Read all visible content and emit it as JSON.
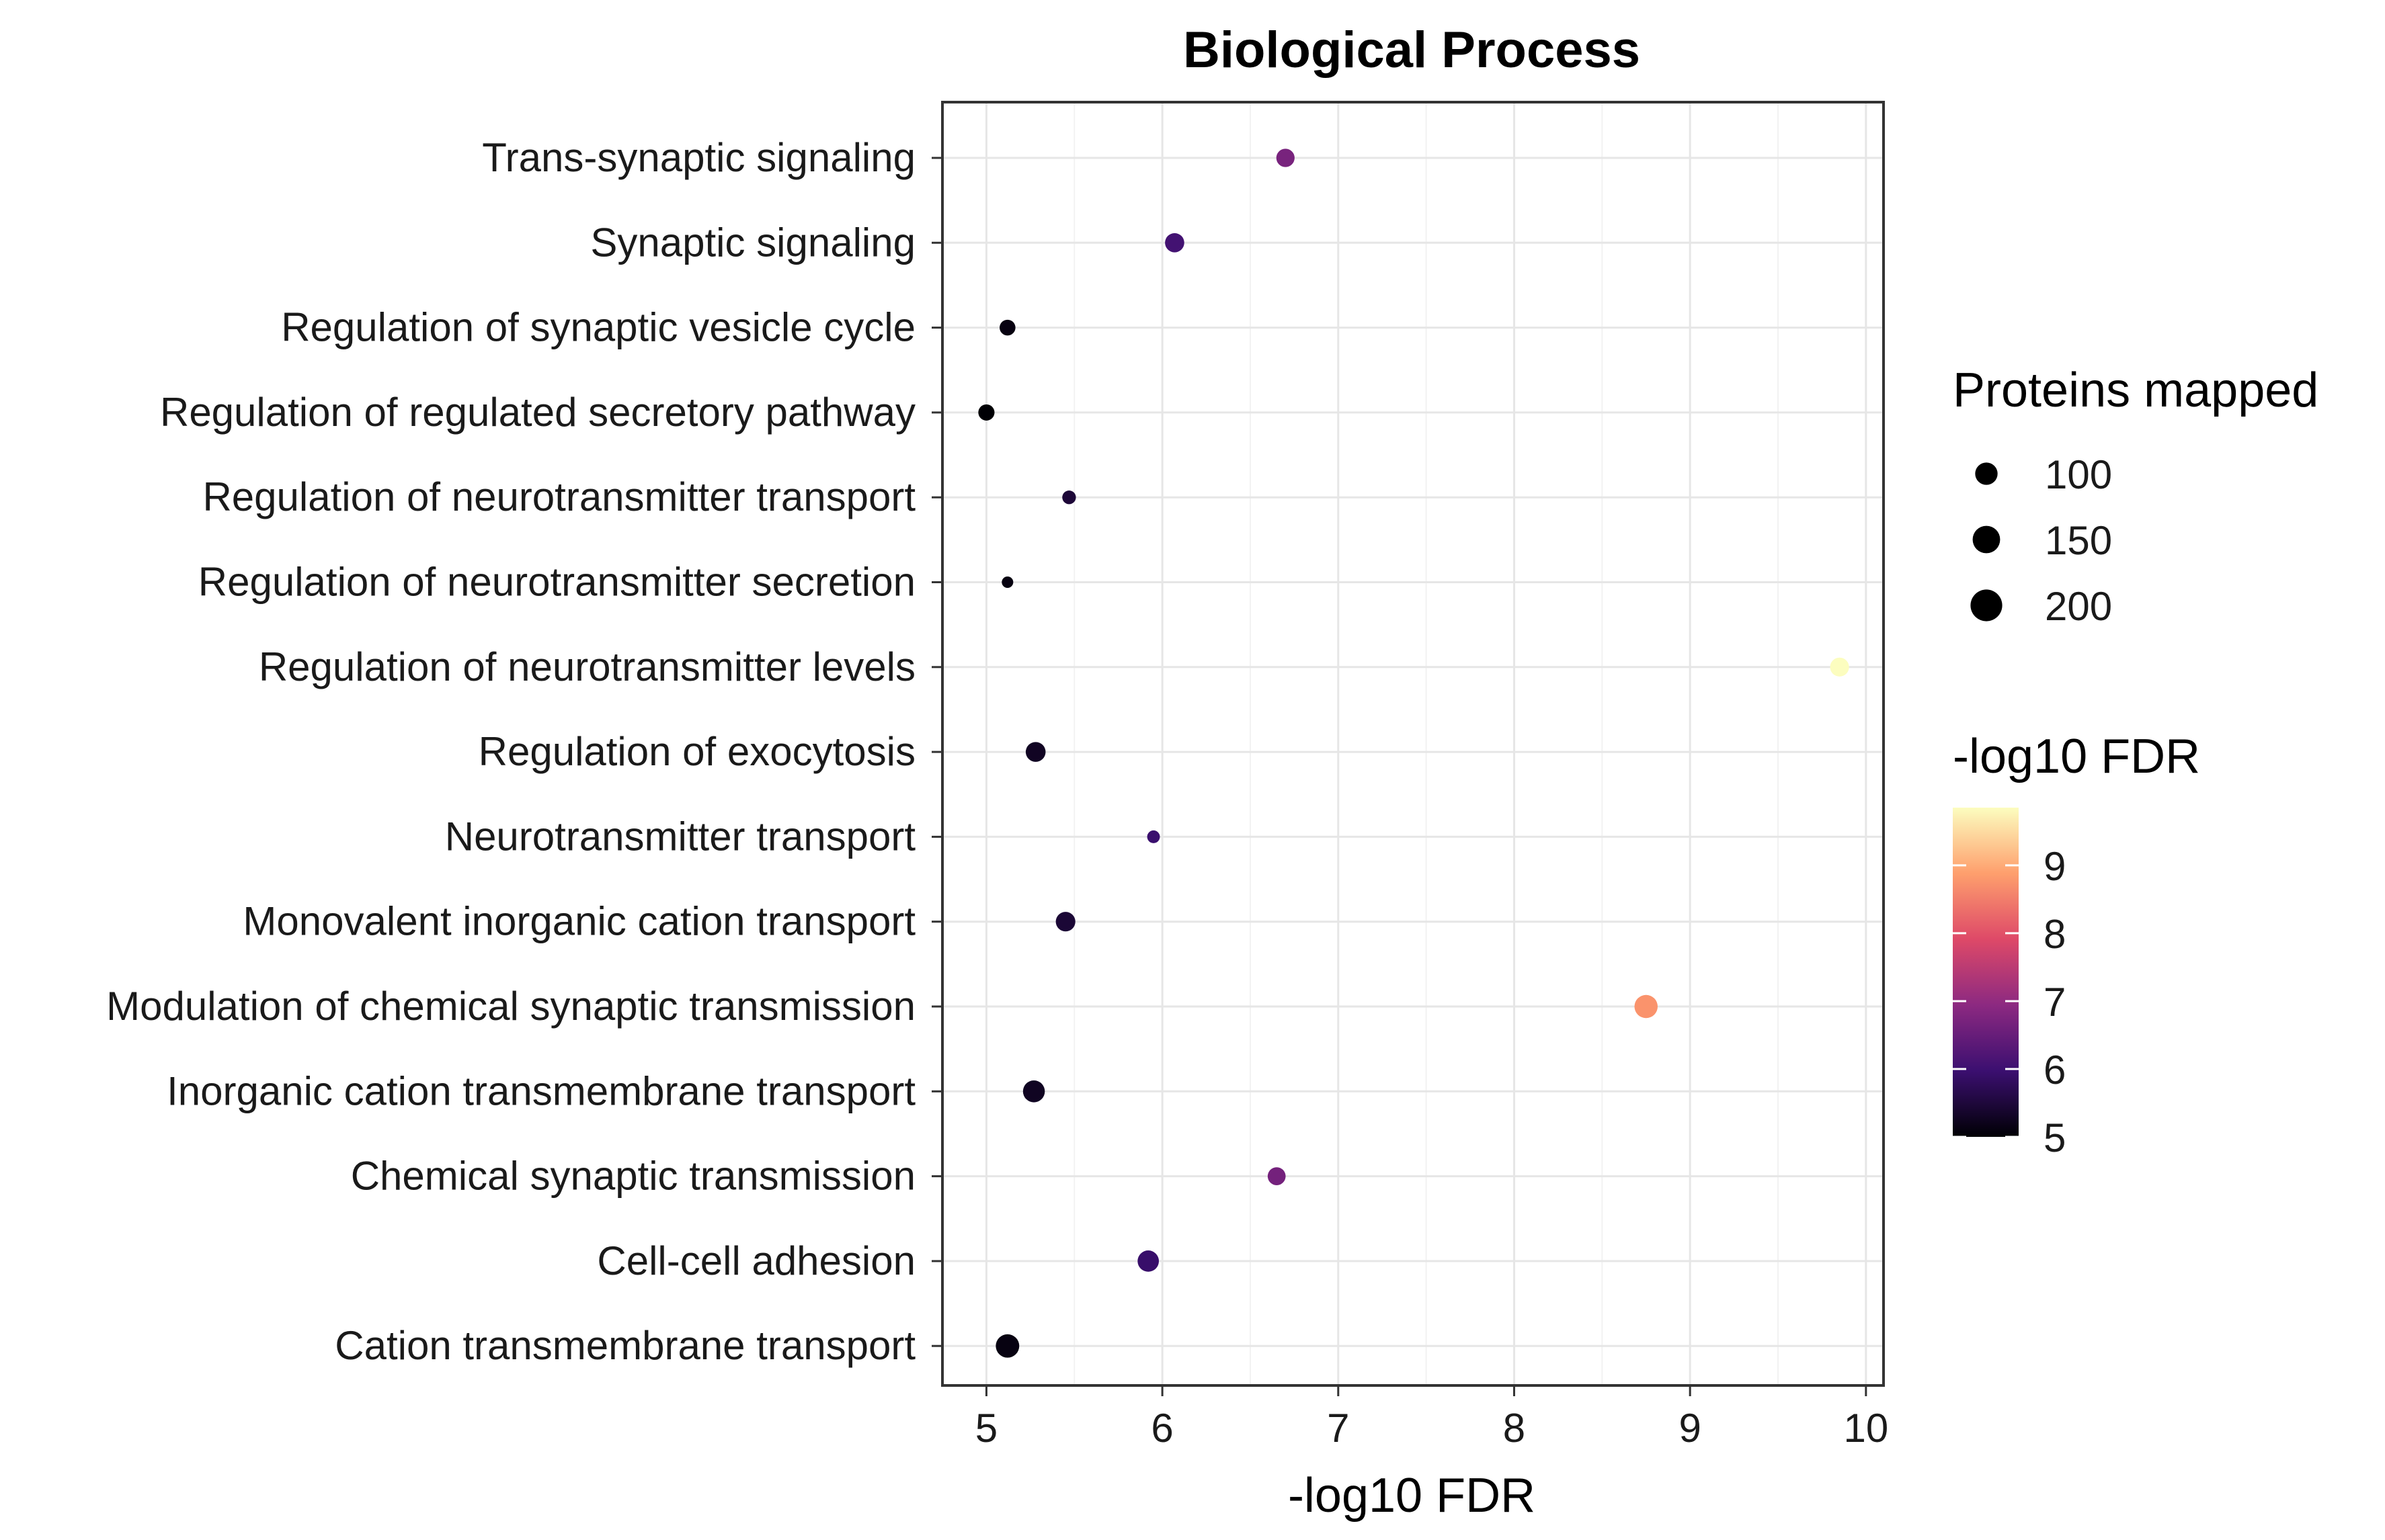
{
  "chart_data": {
    "type": "scatter",
    "title": "Biological Process",
    "xlabel": "-log10 FDR",
    "ylabel": "",
    "xlim": [
      4.75,
      10.1
    ],
    "xticks": [
      5,
      6,
      7,
      8,
      9,
      10
    ],
    "grid": true,
    "legend_position": "right",
    "size_legend": {
      "title": "Proteins mapped",
      "entries": [
        {
          "label": "100",
          "value": 100
        },
        {
          "label": "150",
          "value": 150
        },
        {
          "label": "200",
          "value": 200
        }
      ]
    },
    "color_legend": {
      "title": "-log10 FDR",
      "range": [
        5,
        9.85
      ],
      "ticks": [
        {
          "label": "9",
          "value": 9
        },
        {
          "label": "8",
          "value": 8
        },
        {
          "label": "7",
          "value": 7
        },
        {
          "label": "6",
          "value": 6
        },
        {
          "label": "5",
          "value": 5
        }
      ],
      "palette": [
        "#000004",
        "#3b0f70",
        "#8c2981",
        "#de4968",
        "#fe9f6d",
        "#fcfdbf"
      ]
    },
    "categories": [
      "Trans-synaptic signaling",
      "Synaptic signaling",
      "Regulation of synaptic vesicle cycle",
      "Regulation of regulated secretory pathway",
      "Regulation of neurotransmitter transport",
      "Regulation of neurotransmitter secretion",
      "Regulation of neurotransmitter levels",
      "Regulation of exocytosis",
      "Neurotransmitter transport",
      "Monovalent inorganic cation transport",
      "Modulation of chemical synaptic transmission",
      "Inorganic cation transmembrane transport",
      "Chemical synaptic transmission",
      "Cell-cell adhesion",
      "Cation transmembrane transport"
    ],
    "points": [
      {
        "category": "Trans-synaptic signaling",
        "x": 6.7,
        "size": 140,
        "color": 6.7
      },
      {
        "category": "Synaptic signaling",
        "x": 6.07,
        "size": 155,
        "color": 6.07
      },
      {
        "category": "Regulation of synaptic vesicle cycle",
        "x": 5.12,
        "size": 105,
        "color": 5.12
      },
      {
        "category": "Regulation of regulated secretory pathway",
        "x": 5.0,
        "size": 110,
        "color": 5.0
      },
      {
        "category": "Regulation of neurotransmitter transport",
        "x": 5.47,
        "size": 78,
        "color": 5.47
      },
      {
        "category": "Regulation of neurotransmitter secretion",
        "x": 5.12,
        "size": 55,
        "color": 5.12
      },
      {
        "category": "Regulation of neurotransmitter levels",
        "x": 9.85,
        "size": 150,
        "color": 9.85
      },
      {
        "category": "Regulation of exocytosis",
        "x": 5.28,
        "size": 165,
        "color": 5.28
      },
      {
        "category": "Neurotransmitter transport",
        "x": 5.95,
        "size": 68,
        "color": 5.95
      },
      {
        "category": "Monovalent inorganic cation transport",
        "x": 5.45,
        "size": 160,
        "color": 5.45
      },
      {
        "category": "Modulation of chemical synaptic transmission",
        "x": 8.75,
        "size": 225,
        "color": 8.75
      },
      {
        "category": "Inorganic cation transmembrane transport",
        "x": 5.27,
        "size": 200,
        "color": 5.27
      },
      {
        "category": "Chemical synaptic transmission",
        "x": 6.65,
        "size": 135,
        "color": 6.65
      },
      {
        "category": "Cell-cell adhesion",
        "x": 5.92,
        "size": 190,
        "color": 5.92
      },
      {
        "category": "Cation transmembrane transport",
        "x": 5.12,
        "size": 230,
        "color": 5.12
      }
    ]
  }
}
